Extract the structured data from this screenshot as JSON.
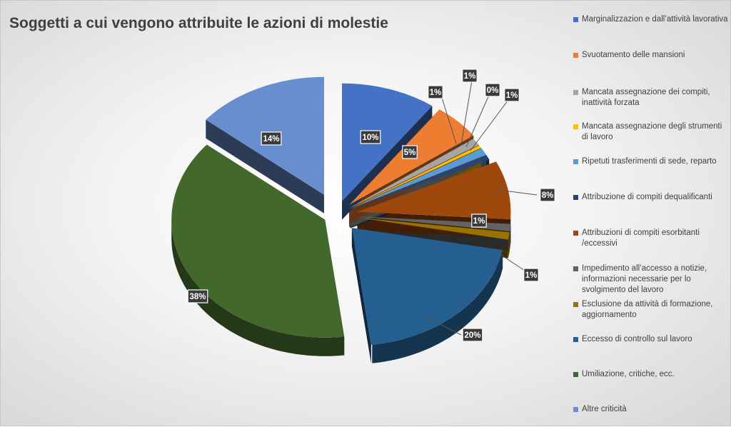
{
  "chart_data": {
    "type": "pie",
    "title": "Soggetti a cui vengono attribuite le azioni di molestie",
    "categories": [
      "Marginalizzazion e dall’attività lavorativa",
      "Svuotamento delle mansioni",
      "Mancata assegnazione dei compiti, inattività forzata",
      "Mancata assegnazione degli strumenti di lavoro",
      "Ripetuti trasferimenti di sede, reparto",
      "Attribuzione di compiti dequalificanti",
      "Attribuzioni di compiti esorbitanti /eccessivi",
      "Impedimento all’accesso a notizie, informazioni necessarie per lo svolgimento del lavoro",
      "Esclusione da attività di formazione, aggiornamento",
      "Eccesso di controllo sul lavoro",
      "Umiliazione, critiche, ecc.",
      "Altre criticità"
    ],
    "values": [
      10,
      5,
      1,
      0.4,
      1,
      0.6,
      8,
      1,
      1,
      20,
      38,
      14
    ],
    "labels": [
      "10%",
      "5%",
      "1%",
      "0%",
      "1%",
      "1%",
      "8%",
      "1%",
      "1%",
      "20%",
      "38%",
      "14%"
    ],
    "colors": [
      "#4472C4",
      "#ED7D31",
      "#A5A5A5",
      "#FFC000",
      "#5B9BD5",
      "#264478",
      "#9E480E",
      "#636363",
      "#997300",
      "#255E91",
      "#43682B",
      "#698ED0"
    ],
    "legend_position": "right",
    "exploded": true,
    "style": "3d"
  }
}
